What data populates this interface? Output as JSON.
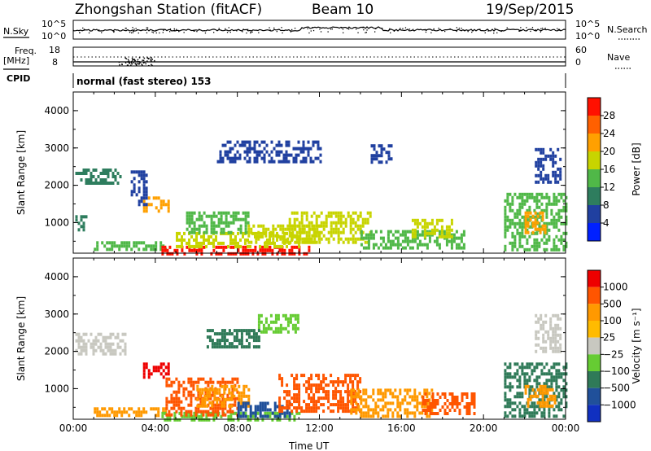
{
  "header": {
    "station": "Zhongshan Station (fitACF)",
    "beam": "Beam 10",
    "date": "19/Sep/2015"
  },
  "noise_panel": {
    "left_label": "N.Sky",
    "left_ticks": [
      "10^5",
      "10^0"
    ],
    "right_label": "N.Search",
    "right_ticks": [
      "10^5",
      "10^0"
    ]
  },
  "freq_panel": {
    "left_label_1": "Freq.",
    "left_label_2": "[MHz]",
    "left_ticks": [
      "18",
      "8"
    ],
    "right_label": "Nave",
    "right_ticks": [
      "60",
      "0"
    ]
  },
  "cpid": {
    "label": "CPID",
    "value": "normal (fast stereo) 153"
  },
  "colors": {
    "power_scale": [
      "#0020ff",
      "#2040a0",
      "#2e7d5e",
      "#50b848",
      "#c8d400",
      "#ffa000",
      "#ff6000",
      "#ff1000"
    ],
    "velocity_scale": [
      "#ee0000",
      "#ff5500",
      "#ff9900",
      "#ffbb00",
      "#c8c8c0",
      "#66cc33",
      "#2f7a58",
      "#20509a",
      "#1030c0"
    ]
  },
  "chart_data": [
    {
      "type": "heatmap",
      "name_text": "Power panel",
      "ylabel": "Slant Range [km]",
      "ylim": [
        180,
        4500
      ],
      "yticks": [
        "1000",
        "2000",
        "3000",
        "4000"
      ],
      "xlim": [
        0,
        24
      ],
      "colorbar": {
        "label": "Power [dB]",
        "ticks": [
          "4",
          "8",
          "12",
          "16",
          "20",
          "24",
          "28"
        ],
        "range": [
          0,
          32
        ]
      },
      "patches": [
        {
          "t0": 0.1,
          "t1": 2.3,
          "r0": 2050,
          "r1": 2450,
          "v": 8
        },
        {
          "t0": 0.1,
          "t1": 0.6,
          "r0": 800,
          "r1": 1200,
          "v": 10
        },
        {
          "t0": 1.0,
          "t1": 4.5,
          "r0": 250,
          "r1": 500,
          "v": 12
        },
        {
          "t0": 3.4,
          "t1": 4.6,
          "r0": 1300,
          "r1": 1700,
          "v": 20
        },
        {
          "t0": 4.3,
          "t1": 11.5,
          "r0": 200,
          "r1": 380,
          "v": 30
        },
        {
          "t0": 5.0,
          "t1": 11.0,
          "r0": 350,
          "r1": 750,
          "v": 18
        },
        {
          "t0": 5.5,
          "t1": 8.5,
          "r0": 700,
          "r1": 1300,
          "v": 14
        },
        {
          "t0": 8.5,
          "t1": 12.0,
          "r0": 450,
          "r1": 950,
          "v": 16
        },
        {
          "t0": 10.5,
          "t1": 14.5,
          "r0": 500,
          "r1": 1300,
          "v": 18
        },
        {
          "t0": 14.0,
          "t1": 19.0,
          "r0": 300,
          "r1": 800,
          "v": 15
        },
        {
          "t0": 16.5,
          "t1": 18.5,
          "r0": 600,
          "r1": 1100,
          "v": 17
        },
        {
          "t0": 21.0,
          "t1": 24.0,
          "r0": 300,
          "r1": 1800,
          "v": 14
        },
        {
          "t0": 22.0,
          "t1": 23.0,
          "r0": 700,
          "r1": 1300,
          "v": 22
        },
        {
          "t0": 7.0,
          "t1": 12.0,
          "r0": 2600,
          "r1": 3200,
          "v": 6
        },
        {
          "t0": 14.5,
          "t1": 15.5,
          "r0": 2600,
          "r1": 3100,
          "v": 7
        },
        {
          "t0": 22.5,
          "t1": 23.8,
          "r0": 2100,
          "r1": 3000,
          "v": 6
        },
        {
          "t0": 2.8,
          "t1": 3.6,
          "r0": 1500,
          "r1": 2400,
          "v": 7
        }
      ]
    },
    {
      "type": "heatmap",
      "name_text": "Velocity panel",
      "ylabel": "Slant Range [km]",
      "ylim": [
        180,
        4500
      ],
      "yticks": [
        "1000",
        "2000",
        "3000",
        "4000"
      ],
      "xlim": [
        0,
        24
      ],
      "xticks": [
        "00:00",
        "04:00",
        "08:00",
        "12:00",
        "16:00",
        "20:00",
        "00:00"
      ],
      "xlabel": "Time UT",
      "colorbar": {
        "label": "Velocity [m s⁻¹]",
        "ticks": [
          "1000",
          "500",
          "100",
          "25",
          "−25",
          "−100",
          "−500",
          "−1000"
        ]
      },
      "patches": [
        {
          "t0": 0.1,
          "t1": 2.5,
          "r0": 1900,
          "r1": 2500,
          "c": 4
        },
        {
          "t0": 3.4,
          "t1": 4.7,
          "r0": 1300,
          "r1": 1700,
          "c": 0
        },
        {
          "t0": 1.0,
          "t1": 4.5,
          "r0": 250,
          "r1": 500,
          "c": 2
        },
        {
          "t0": 4.3,
          "t1": 11.0,
          "r0": 200,
          "r1": 380,
          "c": 5
        },
        {
          "t0": 4.5,
          "t1": 8.0,
          "r0": 300,
          "r1": 1300,
          "c": 1
        },
        {
          "t0": 6.0,
          "t1": 8.5,
          "r0": 500,
          "r1": 1100,
          "c": 2
        },
        {
          "t0": 8.0,
          "t1": 10.5,
          "r0": 250,
          "r1": 650,
          "c": 7
        },
        {
          "t0": 10.0,
          "t1": 14.0,
          "r0": 400,
          "r1": 1400,
          "c": 1
        },
        {
          "t0": 13.5,
          "t1": 17.5,
          "r0": 300,
          "r1": 1000,
          "c": 2
        },
        {
          "t0": 17.0,
          "t1": 19.5,
          "r0": 350,
          "r1": 900,
          "c": 1
        },
        {
          "t0": 21.0,
          "t1": 24.0,
          "r0": 300,
          "r1": 1700,
          "c": 6
        },
        {
          "t0": 22.0,
          "t1": 23.5,
          "r0": 500,
          "r1": 1100,
          "c": 2
        },
        {
          "t0": 9.0,
          "t1": 11.0,
          "r0": 2500,
          "r1": 3000,
          "c": 5
        },
        {
          "t0": 6.5,
          "t1": 9.0,
          "r0": 2100,
          "r1": 2600,
          "c": 6
        },
        {
          "t0": 22.5,
          "t1": 23.8,
          "r0": 2000,
          "r1": 3000,
          "c": 4
        }
      ]
    }
  ]
}
